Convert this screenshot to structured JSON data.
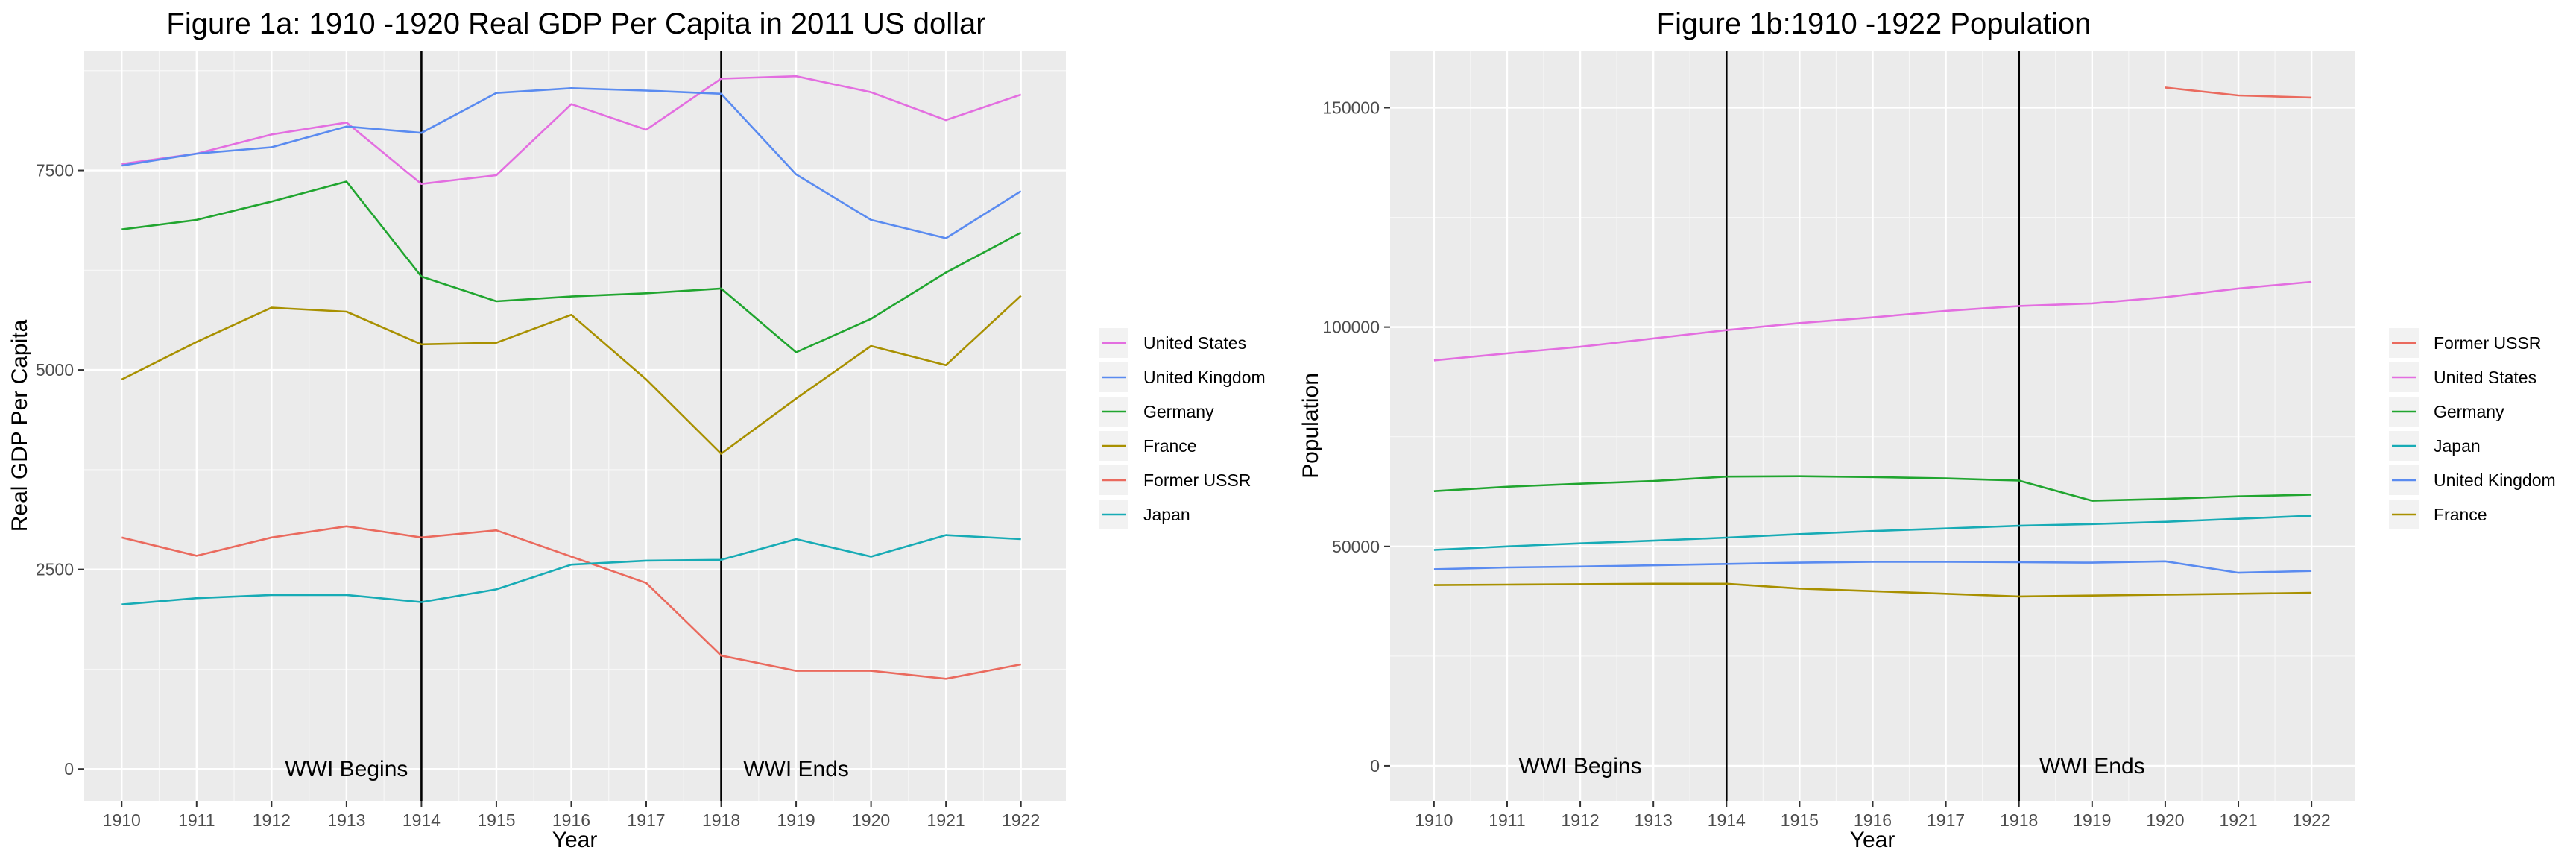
{
  "chart_data": [
    {
      "type": "line",
      "title": "Figure 1a: 1910 -1920 Real GDP Per Capita in 2011 US dollar",
      "xlabel": "Year",
      "ylabel": "Real GDP Per Capita",
      "x": [
        1910,
        1911,
        1912,
        1913,
        1914,
        1915,
        1916,
        1917,
        1918,
        1919,
        1920,
        1921,
        1922
      ],
      "xlim": [
        1909.5,
        1922.6
      ],
      "ylim": [
        -400,
        9000
      ],
      "yticks": [
        0,
        2500,
        5000,
        7500
      ],
      "ytick_labels": [
        "0",
        "2500",
        "5000",
        "7500"
      ],
      "grid": true,
      "legend_position": "right",
      "series": [
        {
          "name": "United States",
          "color": "#E36EE0",
          "values": [
            7580,
            7710,
            7950,
            8100,
            7330,
            7440,
            8330,
            8010,
            8650,
            8680,
            8480,
            8130,
            8450
          ]
        },
        {
          "name": "United Kingdom",
          "color": "#5A8BF0",
          "values": [
            7560,
            7710,
            7790,
            8050,
            7970,
            8470,
            8530,
            8500,
            8460,
            7450,
            6880,
            6650,
            7240
          ]
        },
        {
          "name": "Germany",
          "color": "#20A52F",
          "values": [
            6760,
            6880,
            7110,
            7360,
            6170,
            5860,
            5920,
            5960,
            6020,
            5220,
            5640,
            6220,
            6720
          ]
        },
        {
          "name": "France",
          "color": "#A89000",
          "values": [
            4880,
            5350,
            5780,
            5730,
            5320,
            5340,
            5690,
            4880,
            3950,
            4640,
            5300,
            5060,
            5930
          ]
        },
        {
          "name": "Former USSR",
          "color": "#EA6A5E",
          "values": [
            2900,
            2670,
            2900,
            3040,
            2900,
            2990,
            2660,
            2330,
            1420,
            1230,
            1230,
            1130,
            1310
          ]
        },
        {
          "name": "Japan",
          "color": "#17ABB5",
          "values": [
            2060,
            2140,
            2180,
            2180,
            2090,
            2250,
            2560,
            2610,
            2620,
            2880,
            2660,
            2930,
            2880
          ]
        }
      ],
      "vlines": [
        1914,
        1918
      ],
      "annotations": [
        {
          "text": "WWI Begins",
          "x": 1913.0,
          "y": 0
        },
        {
          "text": "WWI Ends",
          "x": 1919.0,
          "y": 0
        }
      ]
    },
    {
      "type": "line",
      "title": "Figure 1b:1910 -1922 Population",
      "xlabel": "Year",
      "ylabel": "Population",
      "x": [
        1910,
        1911,
        1912,
        1913,
        1914,
        1915,
        1916,
        1917,
        1918,
        1919,
        1920,
        1921,
        1922
      ],
      "xlim": [
        1909.4,
        1922.6
      ],
      "ylim": [
        -8000,
        163000
      ],
      "yticks": [
        0,
        50000,
        100000,
        150000
      ],
      "ytick_labels": [
        "0",
        "50000",
        "100000",
        "150000"
      ],
      "grid": true,
      "legend_position": "right",
      "series": [
        {
          "name": "Former USSR",
          "color": "#EA6A5E",
          "values": [
            null,
            null,
            null,
            null,
            null,
            null,
            null,
            null,
            null,
            null,
            154600,
            152800,
            152300
          ]
        },
        {
          "name": "United States",
          "color": "#E36EE0",
          "values": [
            92400,
            94000,
            95500,
            97400,
            99300,
            100900,
            102200,
            103700,
            104800,
            105400,
            106800,
            108800,
            110300
          ]
        },
        {
          "name": "Germany",
          "color": "#20A52F",
          "values": [
            62600,
            63600,
            64300,
            64900,
            65900,
            66000,
            65800,
            65500,
            65000,
            60400,
            60800,
            61400,
            61800
          ]
        },
        {
          "name": "Japan",
          "color": "#17ABB5",
          "values": [
            49200,
            50000,
            50700,
            51300,
            52000,
            52800,
            53500,
            54100,
            54700,
            55100,
            55600,
            56300,
            57000
          ]
        },
        {
          "name": "United Kingdom",
          "color": "#5A8BF0",
          "values": [
            44800,
            45200,
            45400,
            45700,
            46000,
            46300,
            46500,
            46500,
            46400,
            46300,
            46600,
            44000,
            44400
          ]
        },
        {
          "name": "France",
          "color": "#A89000",
          "values": [
            41200,
            41300,
            41400,
            41500,
            41500,
            40400,
            39800,
            39200,
            38600,
            38800,
            39000,
            39200,
            39400
          ]
        }
      ],
      "vlines": [
        1914,
        1918
      ],
      "annotations": [
        {
          "text": "WWI Begins",
          "x": 1912.0,
          "y": 0
        },
        {
          "text": "WWI Ends",
          "x": 1919.0,
          "y": 0
        }
      ]
    }
  ]
}
